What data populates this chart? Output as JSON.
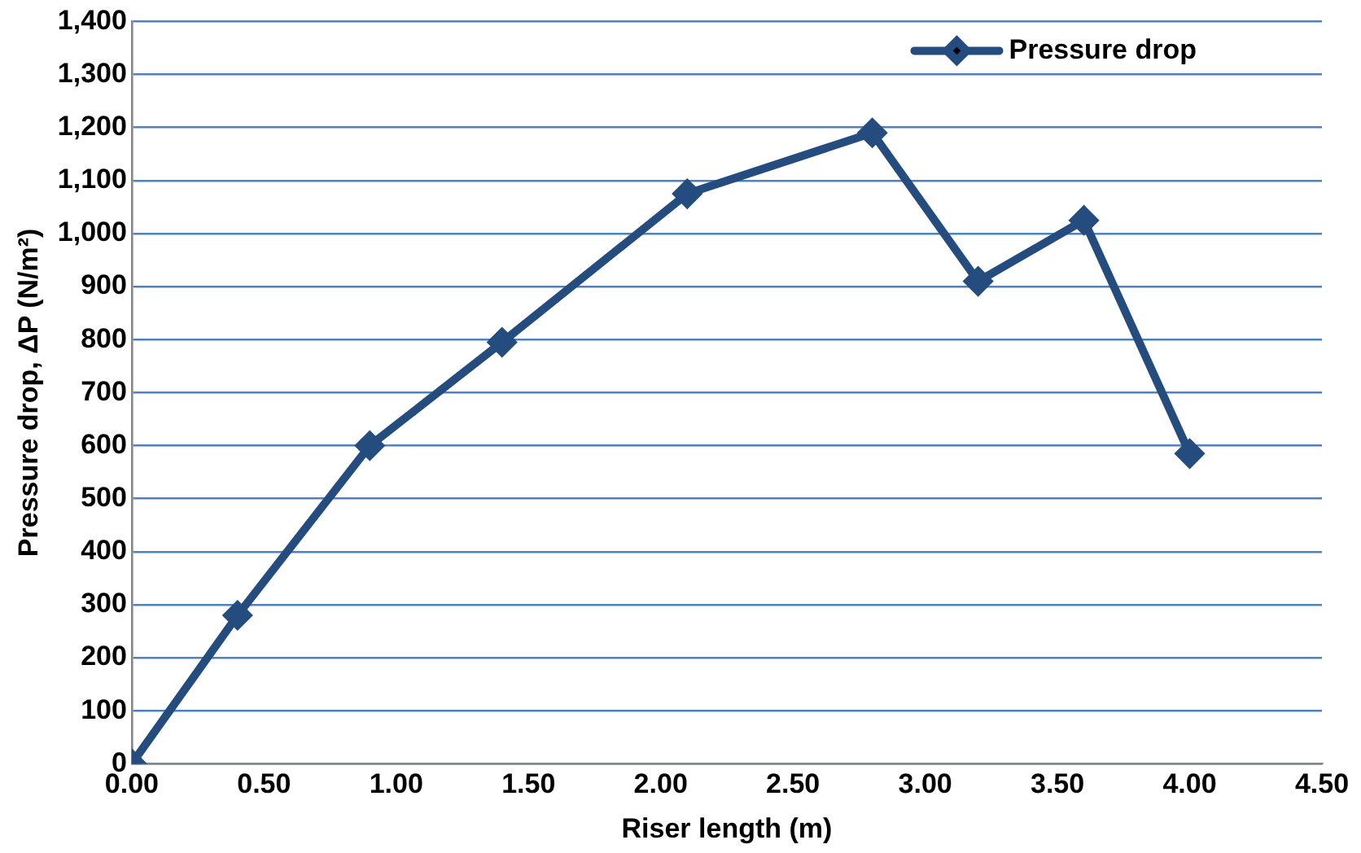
{
  "chart_data": {
    "type": "line",
    "xlabel": "Riser length (m)",
    "ylabel": "Pressure drop, ΔP (N/m²)",
    "x": [
      0,
      0.4,
      0.9,
      1.4,
      2.1,
      2.8,
      3.2,
      3.6,
      4.0
    ],
    "series": [
      {
        "name": "Pressure drop",
        "color": "#244c7f",
        "values": [
          0,
          280,
          600,
          795,
          1075,
          1190,
          910,
          1025,
          585
        ]
      }
    ],
    "xlim": [
      0,
      4.5
    ],
    "xticks": [
      {
        "value": 0,
        "label": "0.00"
      },
      {
        "value": 0.5,
        "label": "0.50"
      },
      {
        "value": 1,
        "label": "1.00"
      },
      {
        "value": 1.5,
        "label": "1.50"
      },
      {
        "value": 2,
        "label": "2.00"
      },
      {
        "value": 2.5,
        "label": "2.50"
      },
      {
        "value": 3,
        "label": "3.00"
      },
      {
        "value": 3.5,
        "label": "3.50"
      },
      {
        "value": 4,
        "label": "4.00"
      },
      {
        "value": 4.5,
        "label": "4.50"
      }
    ],
    "ylim": [
      0,
      1400
    ],
    "yticks": [
      0,
      100,
      200,
      300,
      400,
      500,
      600,
      700,
      800,
      900,
      {
        "value": 1000,
        "label": "1,000"
      },
      {
        "value": 1100,
        "label": "1,100"
      },
      {
        "value": 1200,
        "label": "1,200"
      },
      {
        "value": 1300,
        "label": "1,300"
      },
      {
        "value": 1400,
        "label": "1,400"
      }
    ],
    "grid": "y",
    "legend": "top right",
    "marker": "diamond",
    "line_style": "solid"
  }
}
